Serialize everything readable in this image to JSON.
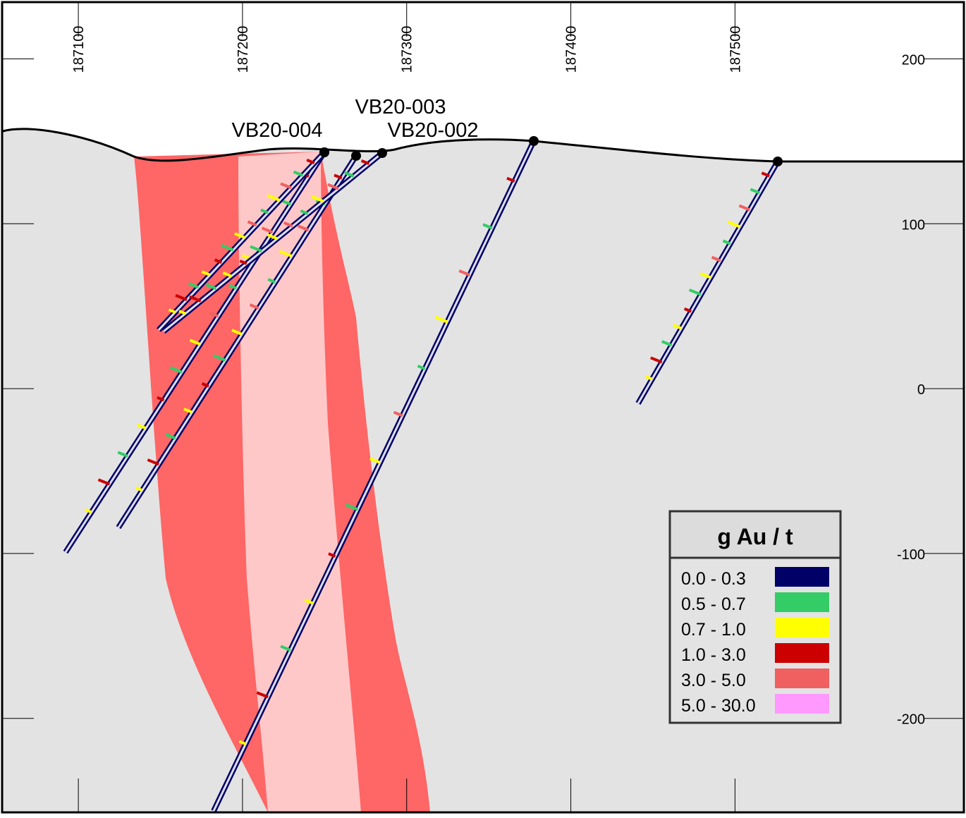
{
  "section": {
    "xlim": [
      187054,
      187639
    ],
    "ylim": [
      -257,
      234
    ],
    "xticks": [
      187100,
      187200,
      187300,
      187400,
      187500
    ],
    "yticks": [
      200,
      100,
      0,
      -100,
      -200
    ],
    "holes": [
      "VB20-004",
      "VB20-003",
      "VB20-002"
    ],
    "legend": {
      "title": "g Au / t",
      "items": [
        {
          "label": "0.0 - 0.3",
          "color": "#000066"
        },
        {
          "label": "0.5 - 0.7",
          "color": "#33cc66"
        },
        {
          "label": "0.7 - 1.0",
          "color": "#ffff00"
        },
        {
          "label": "1.0 - 3.0",
          "color": "#cc0000"
        },
        {
          "label": "3.0 - 5.0",
          "color": "#f06060"
        },
        {
          "label": "5.0 - 30.0",
          "color": "#ff99ff"
        }
      ]
    }
  }
}
